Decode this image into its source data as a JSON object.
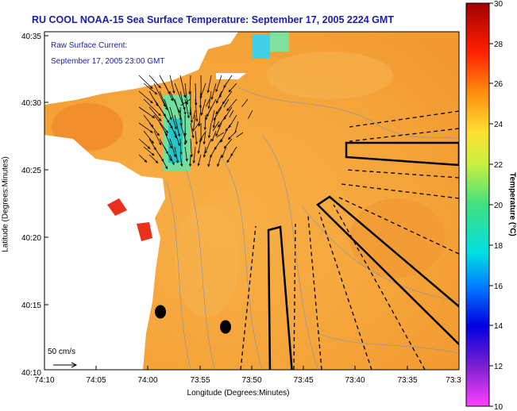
{
  "title": "RU COOL  NOAA-15  Sea Surface Temperature:  September 17, 2005 2224 GMT",
  "legend": {
    "line1": "Raw Surface Current:",
    "line2": "September 17, 2005 23:00 GMT"
  },
  "scale_label": "50 cm/s",
  "axes": {
    "ylabel": "Latitude (Degrees:Minutes)",
    "xlabel": "Longitude (Degrees:Minutes)",
    "yticks": [
      "40:35",
      "40:30",
      "40:25",
      "40:20",
      "40:15",
      "40:10"
    ],
    "xticks": [
      "74:10",
      "74:05",
      "74:00",
      "73:55",
      "73:50",
      "73:45",
      "73:40",
      "73:35",
      "73:3"
    ]
  },
  "colorbar": {
    "label": "Temperature (°C)",
    "ticks": [
      "30",
      "28",
      "26",
      "24",
      "22",
      "20",
      "18",
      "16",
      "14",
      "12",
      "10"
    ]
  },
  "colors": {
    "title": "#1c1ca8",
    "ocean": "#f5a93e",
    "land": "#ffffff"
  }
}
